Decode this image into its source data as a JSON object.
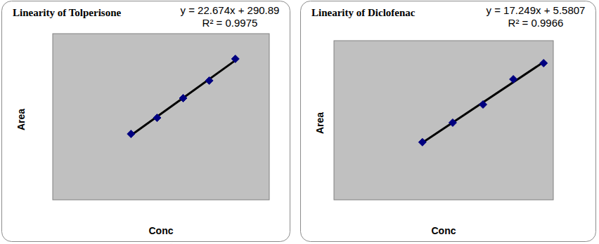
{
  "chart_data": [
    {
      "type": "scatter",
      "title": "Linearity of Tolperisone",
      "annotations": [
        "y = 22.674x + 290.89",
        "R² = 0.9975"
      ],
      "x_label": "Conc",
      "y_label": "Area",
      "x": [
        30,
        40,
        50,
        60,
        70
      ],
      "values": [
        967,
        1162,
        1400,
        1612,
        1875
      ],
      "xlim": [
        0,
        83
      ],
      "ylim": [
        170,
        2180
      ],
      "color": "#000080",
      "marker": "diamond",
      "line_style": "solid",
      "grid": false,
      "tick_labels": false
    },
    {
      "type": "scatter",
      "title": "Linearity of Diclofenac",
      "annotations": [
        "y = 17.249x + 5.5807",
        "R² = 0.9966"
      ],
      "x_label": "Conc",
      "y_label": "Area",
      "x": [
        20,
        25,
        30,
        35,
        40
      ],
      "values": [
        351,
        436,
        515,
        625,
        695
      ],
      "xlim": [
        5.4,
        41.6
      ],
      "ylim": [
        100,
        793
      ],
      "color": "#000080",
      "marker": "diamond",
      "line_style": "solid",
      "grid": false,
      "tick_labels": false
    }
  ]
}
